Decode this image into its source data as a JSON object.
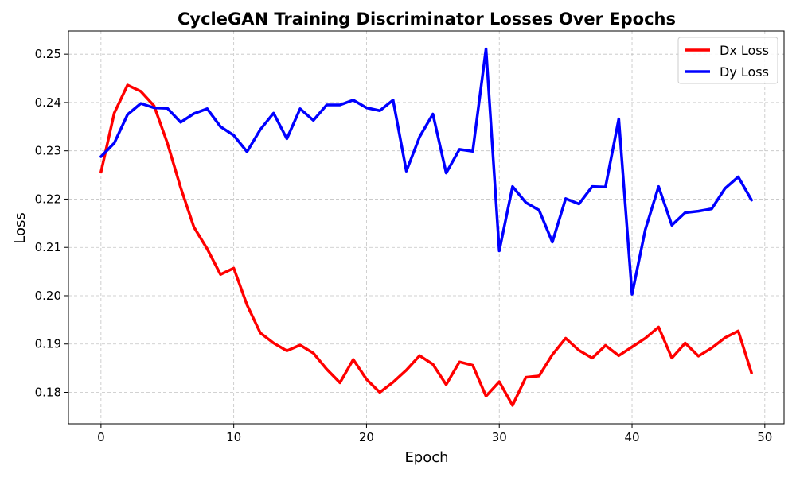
{
  "chart_data": {
    "type": "line",
    "title": "CycleGAN Training Discriminator Losses Over Epochs",
    "xlabel": "Epoch",
    "ylabel": "Loss",
    "xlim": [
      -2.45,
      51.45
    ],
    "ylim": [
      0.1735,
      0.2548
    ],
    "xticks": [
      0,
      10,
      20,
      30,
      40,
      50
    ],
    "yticks": [
      0.18,
      0.19,
      0.2,
      0.21,
      0.22,
      0.23,
      0.24,
      0.25
    ],
    "ytick_labels": [
      "0.18",
      "0.19",
      "0.20",
      "0.21",
      "0.22",
      "0.23",
      "0.24",
      "0.25"
    ],
    "grid": true,
    "legend_position": "top-right",
    "x": [
      0,
      1,
      2,
      3,
      4,
      5,
      6,
      7,
      8,
      9,
      10,
      11,
      12,
      13,
      14,
      15,
      16,
      17,
      18,
      19,
      20,
      21,
      22,
      23,
      24,
      25,
      26,
      27,
      28,
      29,
      30,
      31,
      32,
      33,
      34,
      35,
      36,
      37,
      38,
      39,
      40,
      41,
      42,
      43,
      44,
      45,
      46,
      47,
      48,
      49
    ],
    "series": [
      {
        "name": "Dx Loss",
        "color": "#ff0000",
        "values": [
          0.2256,
          0.2378,
          0.2436,
          0.2423,
          0.2393,
          0.2316,
          0.2224,
          0.2142,
          0.2097,
          0.2044,
          0.2057,
          0.1981,
          0.1923,
          0.1902,
          0.1886,
          0.1898,
          0.1881,
          0.1848,
          0.182,
          0.1868,
          0.1827,
          0.18,
          0.1821,
          0.1846,
          0.1876,
          0.1858,
          0.1816,
          0.1863,
          0.1856,
          0.1792,
          0.1822,
          0.1773,
          0.1831,
          0.1834,
          0.1878,
          0.1912,
          0.1887,
          0.1871,
          0.1897,
          0.1876,
          0.1894,
          0.1912,
          0.1935,
          0.1871,
          0.1902,
          0.1875,
          0.1892,
          0.1913,
          0.1927,
          0.184
        ]
      },
      {
        "name": "Dy Loss",
        "color": "#0000ff",
        "values": [
          0.2288,
          0.2316,
          0.2375,
          0.2398,
          0.2389,
          0.2388,
          0.2359,
          0.2377,
          0.2387,
          0.235,
          0.2332,
          0.2298,
          0.2344,
          0.2378,
          0.2325,
          0.2387,
          0.2363,
          0.2395,
          0.2395,
          0.2405,
          0.2389,
          0.2383,
          0.2405,
          0.2258,
          0.2329,
          0.2376,
          0.2254,
          0.2303,
          0.2299,
          0.2511,
          0.2093,
          0.2226,
          0.2193,
          0.2177,
          0.2111,
          0.2201,
          0.219,
          0.2226,
          0.2225,
          0.2366,
          0.2003,
          0.2137,
          0.2226,
          0.2146,
          0.2172,
          0.2175,
          0.218,
          0.2222,
          0.2246,
          0.2198
        ]
      }
    ]
  }
}
